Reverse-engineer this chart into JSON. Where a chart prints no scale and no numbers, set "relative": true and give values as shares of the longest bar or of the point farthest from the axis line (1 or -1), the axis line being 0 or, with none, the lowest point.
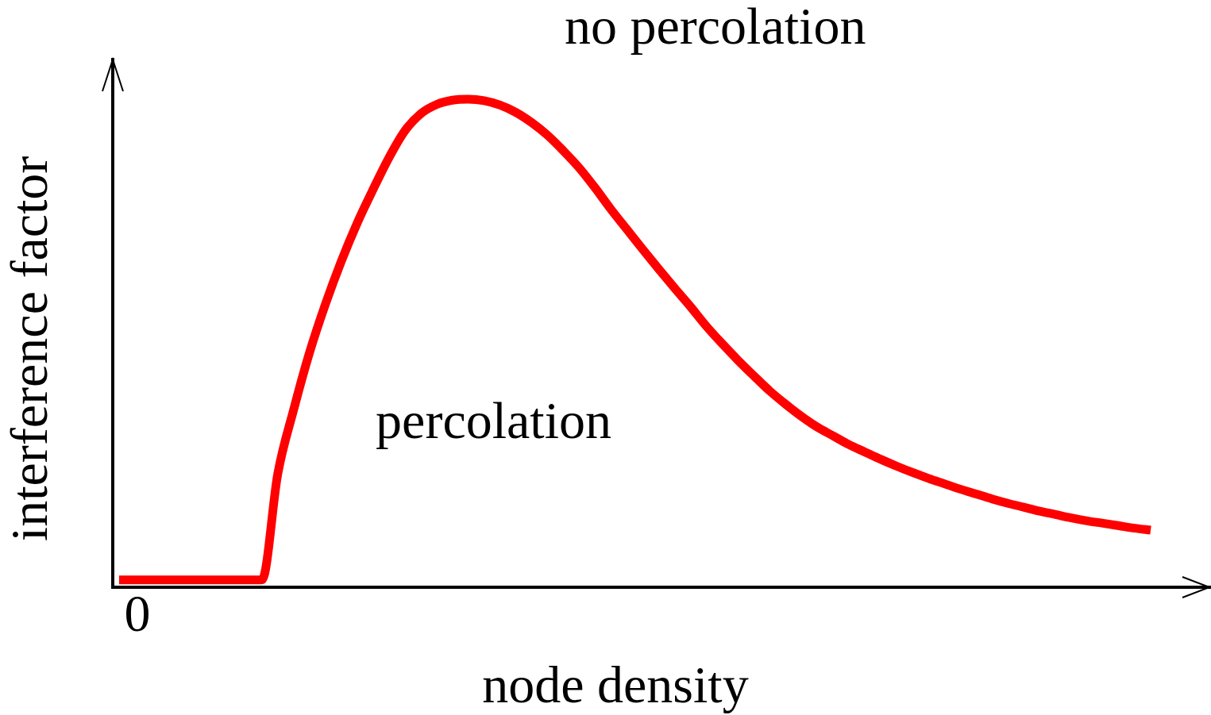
{
  "chart_data": {
    "type": "line",
    "xlabel": "node density",
    "ylabel": "interference factor",
    "annotations": [
      "no percolation",
      "percolation",
      "0"
    ],
    "relative": true,
    "marker": "none",
    "line_style": "solid",
    "categories": [
      null,
      null,
      null,
      null,
      null,
      null,
      null,
      null,
      null,
      null,
      null,
      null,
      null,
      null,
      null,
      null,
      null,
      null,
      null,
      null,
      null,
      null,
      null,
      null,
      null,
      null,
      null,
      null,
      null,
      null,
      null,
      null,
      null,
      null,
      null,
      null,
      null,
      null,
      null,
      null,
      null,
      null,
      null,
      null,
      null,
      null,
      null,
      null,
      null,
      null,
      null,
      null,
      null,
      null,
      null,
      null,
      null,
      null,
      null,
      null,
      null,
      null,
      null,
      null,
      null,
      null
    ],
    "series": [
      {
        "color": "#ff0000",
        "values": [
          0.015,
          0.015,
          0.015,
          0.015,
          0.015,
          0.015,
          0.015,
          0.015,
          0.015,
          0.015,
          0.233,
          0.364,
          0.481,
          0.58,
          0.668,
          0.746,
          0.815,
          0.88,
          0.935,
          0.97,
          0.989,
          0.998,
          1,
          0.997,
          0.988,
          0.973,
          0.952,
          0.926,
          0.894,
          0.859,
          0.818,
          0.774,
          0.733,
          0.692,
          0.652,
          0.613,
          0.575,
          0.535,
          0.499,
          0.465,
          0.433,
          0.402,
          0.375,
          0.35,
          0.328,
          0.31,
          0.292,
          0.277,
          0.262,
          0.248,
          0.235,
          0.223,
          0.212,
          0.201,
          0.191,
          0.181,
          0.172,
          0.164,
          0.156,
          0.149,
          0.142,
          0.136,
          0.131,
          0.126,
          0.121,
          0.117
        ]
      }
    ]
  }
}
